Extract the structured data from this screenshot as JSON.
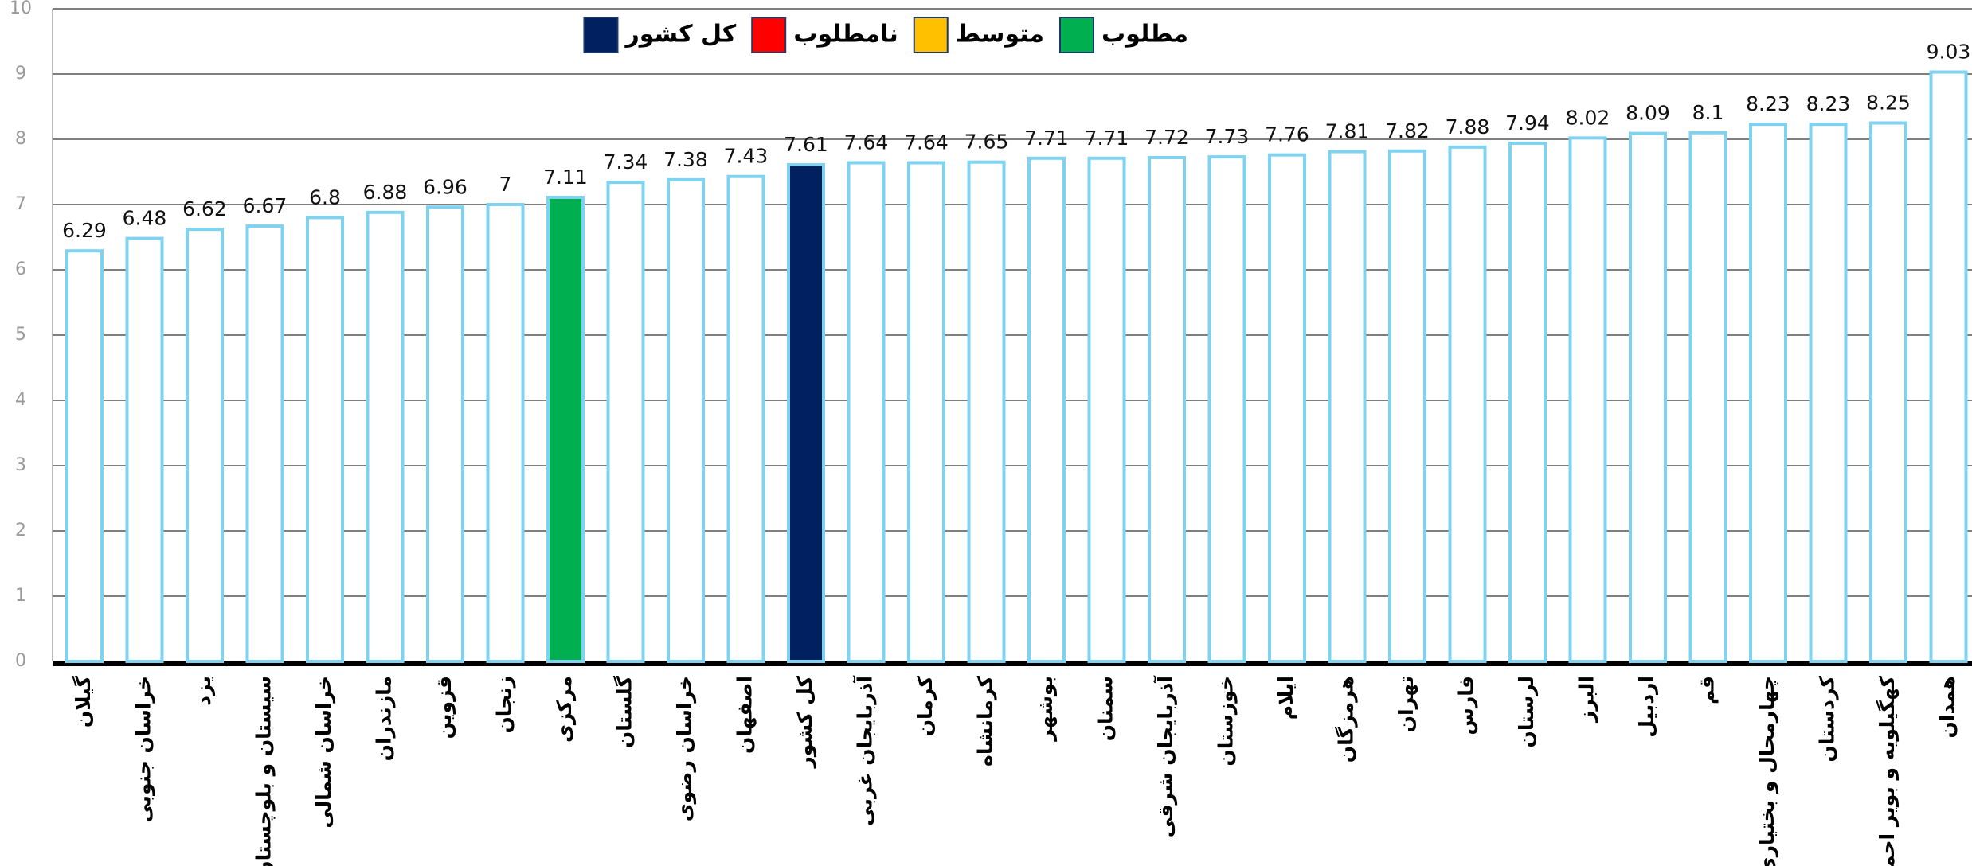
{
  "chart_data": {
    "type": "bar",
    "categories": [
      "گیلان",
      "خراسان جنوبی",
      "یزد",
      "سیستان و بلوچستان",
      "خراسان شمالی",
      "مازندران",
      "قزوین",
      "زنجان",
      "مرکزی",
      "گلستان",
      "خراسان رضوی",
      "اصفهان",
      "کل کشور",
      "آذربایجان غربی",
      "کرمان",
      "کرمانشاه",
      "بوشهر",
      "سمنان",
      "آذربایجان شرقی",
      "خوزستان",
      "ایلام",
      "هرمزگان",
      "تهران",
      "فارس",
      "لرستان",
      "البرز",
      "اردبیل",
      "قم",
      "چهارمحال و بختیاری",
      "کردستان",
      "کهگیلویه و بویر احمد",
      "همدان"
    ],
    "values": [
      6.29,
      6.48,
      6.62,
      6.67,
      6.8,
      6.88,
      6.96,
      7,
      7.11,
      7.34,
      7.38,
      7.43,
      7.61,
      7.64,
      7.64,
      7.65,
      7.71,
      7.71,
      7.72,
      7.73,
      7.76,
      7.81,
      7.82,
      7.88,
      7.94,
      8.02,
      8.09,
      8.1,
      8.23,
      8.23,
      8.25,
      9.03
    ],
    "colors": [
      "#ffffff",
      "#ffffff",
      "#ffffff",
      "#ffffff",
      "#ffffff",
      "#ffffff",
      "#ffffff",
      "#ffffff",
      "#00b050",
      "#ffffff",
      "#ffffff",
      "#ffffff",
      "#002060",
      "#ffffff",
      "#ffffff",
      "#ffffff",
      "#ffffff",
      "#ffffff",
      "#ffffff",
      "#ffffff",
      "#ffffff",
      "#ffffff",
      "#ffffff",
      "#ffffff",
      "#ffffff",
      "#ffffff",
      "#ffffff",
      "#ffffff",
      "#ffffff",
      "#ffffff",
      "#ffffff",
      "#ffffff"
    ],
    "outline_color": "#7fd3f0",
    "legend": [
      {
        "name": "مطلوب",
        "color": "#00b050"
      },
      {
        "name": "متوسط",
        "color": "#ffc000"
      },
      {
        "name": "نامطلوب",
        "color": "#ff0000"
      },
      {
        "name": "کل کشور",
        "color": "#002060"
      }
    ],
    "ylim": [
      0,
      10
    ],
    "yticks": [
      0,
      1,
      2,
      3,
      4,
      5,
      6,
      7,
      8,
      9,
      10
    ],
    "grid": true
  }
}
